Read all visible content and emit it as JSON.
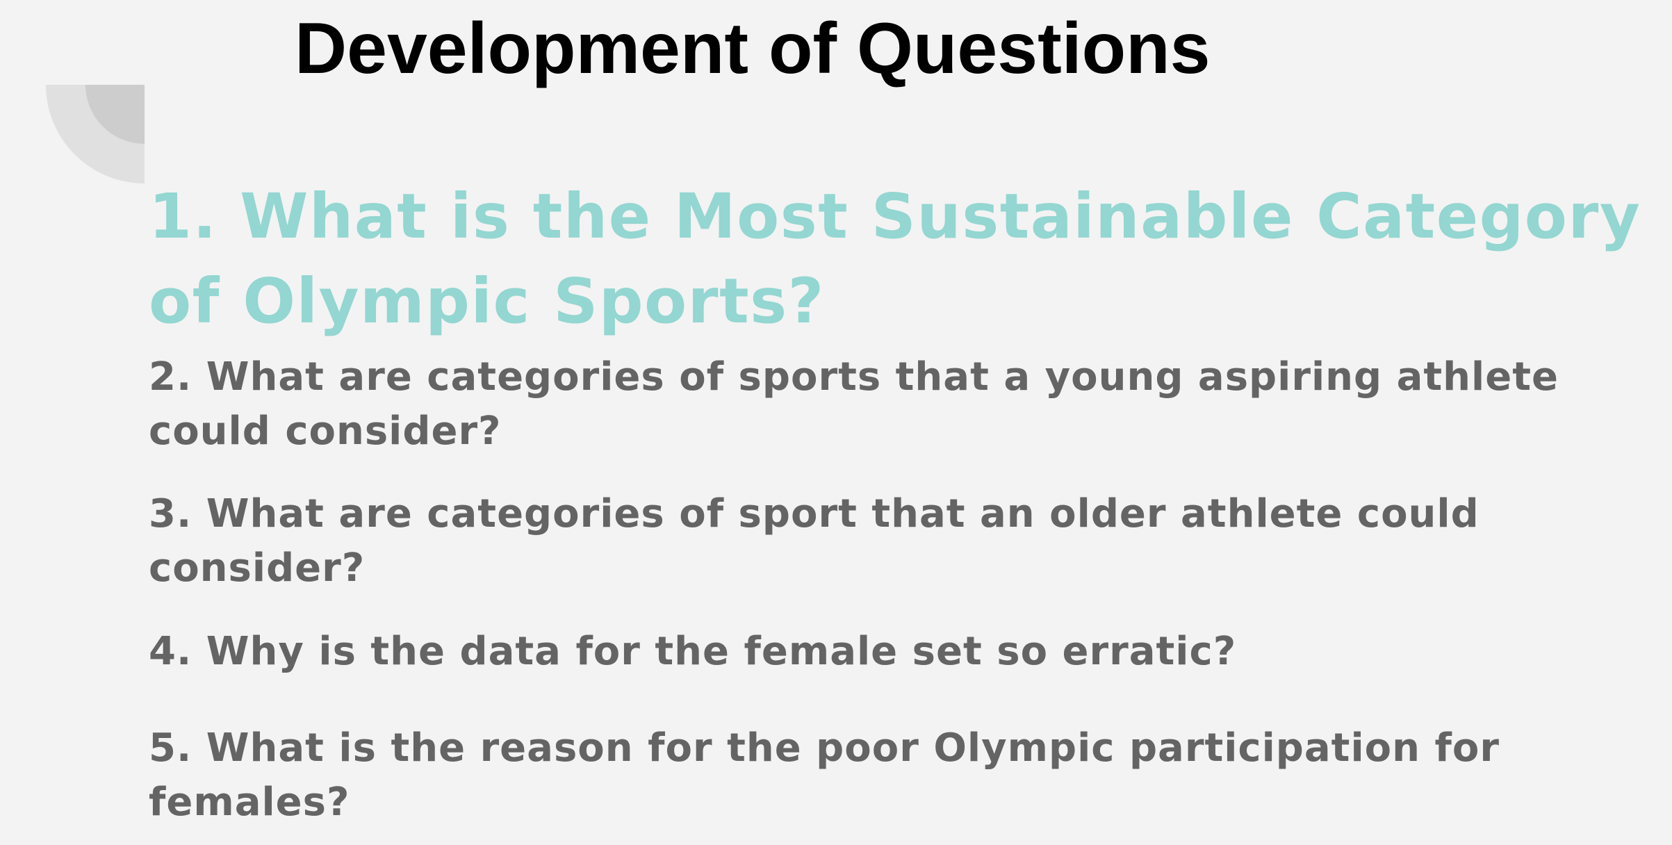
{
  "slide": {
    "title": "Development of Questions",
    "questions": [
      {
        "lines": [
          "1. What is the Most Sustainable Category",
          "of Olympic Sports?"
        ]
      },
      {
        "lines": [
          "2. What are categories of sports that a young aspiring athlete",
          "could consider?"
        ]
      },
      {
        "lines": [
          "3. What are categories of sport that an older athlete could",
          "consider?"
        ]
      },
      {
        "lines": [
          "4. Why is the data for the female set so erratic?"
        ]
      },
      {
        "lines": [
          "5. What is the reason for the poor Olympic participation for",
          "females?"
        ]
      }
    ],
    "colors": {
      "background": "#f3f3f3",
      "title": "#000000",
      "highlight_question": "#94d6d1",
      "question_text": "#646464",
      "decor_outer": "#e0e0e0",
      "decor_inner": "#cdcdcd"
    },
    "decor": "quarter-circle-ornament"
  }
}
